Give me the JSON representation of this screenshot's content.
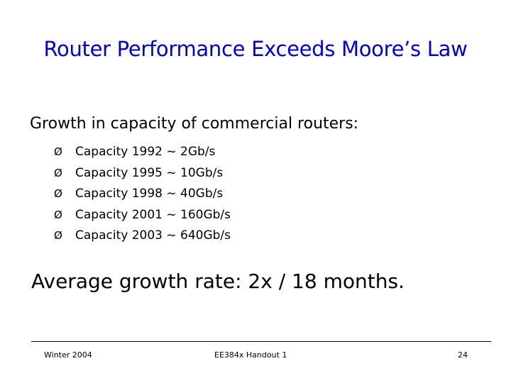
{
  "slide": {
    "title": "Router Performance Exceeds Moore’s Law",
    "intro": "Growth in capacity of commercial routers:",
    "bullet_glyph": "Ø",
    "bullets": [
      "Capacity 1992 ~ 2Gb/s",
      "Capacity 1995 ~ 10Gb/s",
      "Capacity 1998 ~ 40Gb/s",
      "Capacity 2001 ~ 160Gb/s",
      "Capacity 2003 ~ 640Gb/s"
    ],
    "average": "Average growth rate: 2x / 18 months."
  },
  "footer": {
    "left": "Winter 2004",
    "center": "EE384x Handout 1",
    "page_number": "24"
  },
  "colors": {
    "title": "#0000cc",
    "text": "#000000",
    "background": "#ffffff"
  }
}
